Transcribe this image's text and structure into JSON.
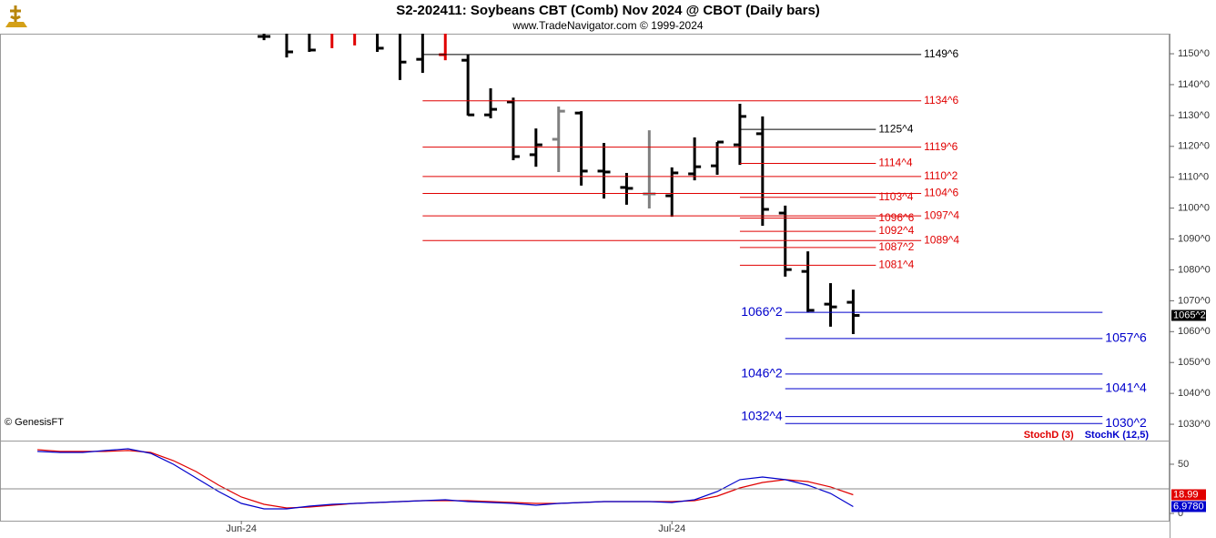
{
  "header": {
    "title": "S2-202411:  Soybeans CBT (Comb) Nov 2024 @ CBOT  (Daily bars)",
    "subtitle": "www.TradeNavigator.com © 1999-2024"
  },
  "watermark": "© GenesisFT",
  "chart_data": [
    {
      "type": "ohlc",
      "xlim": [
        -11.65,
        39.96
      ],
      "xticks": [
        {
          "value": -1,
          "label": "Jun-24"
        },
        {
          "value": 18,
          "label": "Jul-24"
        }
      ],
      "ylim": [
        1025,
        1156.5
      ],
      "yticks": [
        {
          "value": 1150,
          "label": "1150^0"
        },
        {
          "value": 1140,
          "label": "1140^0"
        },
        {
          "value": 1130,
          "label": "1130^0"
        },
        {
          "value": 1120,
          "label": "1120^0"
        },
        {
          "value": 1110,
          "label": "1110^0"
        },
        {
          "value": 1100,
          "label": "1100^0"
        },
        {
          "value": 1090,
          "label": "1090^0"
        },
        {
          "value": 1080,
          "label": "1080^0"
        },
        {
          "value": 1070,
          "label": "1070^0"
        },
        {
          "value": 1060,
          "label": "1060^0"
        },
        {
          "value": 1050,
          "label": "1050^0"
        },
        {
          "value": 1040,
          "label": "1040^0"
        },
        {
          "value": 1030,
          "label": "1030^0"
        }
      ],
      "bars": {
        "open": [
          1155.6,
          null,
          null,
          null,
          null,
          null,
          null,
          1148.2,
          1149.7,
          1147.9,
          1130.2,
          1134.4,
          1117.3,
          1122.3,
          1130.8,
          1112.0,
          1106.7,
          1104.6,
          1104.0,
          1111.1,
          1113.7,
          1120.5,
          1124.1,
          1098.4,
          1079.5,
          1068.9,
          1069.5
        ],
        "high": [
          1156.5,
          1156.5,
          1156.5,
          1156.5,
          1156.5,
          1156.5,
          1156.5,
          1156.5,
          1156.5,
          1149.7,
          1138.8,
          1135.8,
          1125.8,
          1132.9,
          1131.4,
          1121.1,
          1111.4,
          1125.2,
          1113.2,
          1122.9,
          1121.4,
          1133.8,
          1129.7,
          1100.8,
          1086.0,
          1075.7,
          1073.6
        ],
        "low": [
          1154.4,
          1148.8,
          1150.6,
          1151.8,
          1152.7,
          1150.6,
          1141.5,
          1143.8,
          1147.9,
          1130.0,
          1129.1,
          1115.5,
          1113.4,
          1111.7,
          1107.3,
          1103.1,
          1101.1,
          1099.9,
          1097.2,
          1109.0,
          1110.8,
          1114.0,
          1094.3,
          1077.8,
          1066.3,
          1061.6,
          1059.2
        ],
        "close": [
          1155.6,
          1150.6,
          1151.2,
          null,
          null,
          1151.8,
          1147.3,
          null,
          null,
          1130.2,
          1132.0,
          1116.7,
          1120.5,
          1131.4,
          1112.0,
          1111.7,
          1106.4,
          1104.6,
          1111.4,
          1113.4,
          1121.4,
          1129.7,
          1099.6,
          1080.1,
          1066.9,
          1068.0,
          1065.25
        ],
        "colors": [
          "#000000",
          "#000000",
          "#000000",
          "#e00000",
          "#e00000",
          "#000000",
          "#000000",
          "#000000",
          "#e00000",
          "#000000",
          "#000000",
          "#000000",
          "#000000",
          "#808080",
          "#000000",
          "#000000",
          "#000000",
          "#808080",
          "#000000",
          "#000000",
          "#000000",
          "#000000",
          "#000000",
          "#000000",
          "#000000",
          "#000000",
          "#000000"
        ]
      },
      "last_label": "1065^2",
      "levels": [
        {
          "value": 1149.75,
          "label": "1149^6",
          "color": "#000000",
          "from": 7,
          "to": 29,
          "label_side": "right"
        },
        {
          "value": 1134.75,
          "label": "1134^6",
          "color": "#e00000",
          "from": 7,
          "to": 29,
          "label_side": "right"
        },
        {
          "value": 1125.5,
          "label": "1125^4",
          "color": "#000000",
          "from": 21,
          "to": 27,
          "label_side": "right"
        },
        {
          "value": 1119.75,
          "label": "1119^6",
          "color": "#e00000",
          "from": 7,
          "to": 29,
          "label_side": "right"
        },
        {
          "value": 1114.5,
          "label": "1114^4",
          "color": "#e00000",
          "from": 21,
          "to": 27,
          "label_side": "right"
        },
        {
          "value": 1110.25,
          "label": "1110^2",
          "color": "#e00000",
          "from": 7,
          "to": 29,
          "label_side": "right"
        },
        {
          "value": 1104.75,
          "label": "1104^6",
          "color": "#e00000",
          "from": 7,
          "to": 29,
          "label_side": "right"
        },
        {
          "value": 1103.5,
          "label": "1103^4",
          "color": "#e00000",
          "from": 21,
          "to": 27,
          "label_side": "right"
        },
        {
          "value": 1097.5,
          "label": "1097^4",
          "color": "#e00000",
          "from": 7,
          "to": 29,
          "label_side": "right"
        },
        {
          "value": 1096.75,
          "label": "1096^6",
          "color": "#e00000",
          "from": 21,
          "to": 27,
          "label_side": "right"
        },
        {
          "value": 1092.5,
          "label": "1092^4",
          "color": "#e00000",
          "from": 21,
          "to": 27,
          "label_side": "right"
        },
        {
          "value": 1089.5,
          "label": "1089^4",
          "color": "#e00000",
          "from": 7,
          "to": 29,
          "label_side": "right"
        },
        {
          "value": 1087.25,
          "label": "1087^2",
          "color": "#e00000",
          "from": 21,
          "to": 27,
          "label_side": "right"
        },
        {
          "value": 1081.5,
          "label": "1081^4",
          "color": "#e00000",
          "from": 21,
          "to": 27,
          "label_side": "right"
        },
        {
          "value": 1066.25,
          "label": "1066^2",
          "color": "#0000cc",
          "from": 23,
          "to": 37,
          "label_side": "left"
        },
        {
          "value": 1057.75,
          "label": "1057^6",
          "color": "#0000cc",
          "from": 23,
          "to": 37,
          "label_side": "right"
        },
        {
          "value": 1046.25,
          "label": "1046^2",
          "color": "#0000cc",
          "from": 23,
          "to": 37,
          "label_side": "left"
        },
        {
          "value": 1041.5,
          "label": "1041^4",
          "color": "#0000cc",
          "from": 23,
          "to": 37,
          "label_side": "right"
        },
        {
          "value": 1032.5,
          "label": "1032^4",
          "color": "#0000cc",
          "from": 23,
          "to": 37,
          "label_side": "left"
        },
        {
          "value": 1030.25,
          "label": "1030^2",
          "color": "#0000cc",
          "from": 23,
          "to": 37,
          "label_side": "right"
        }
      ]
    },
    {
      "type": "line",
      "xlim": [
        -11.65,
        39.96
      ],
      "ylim": [
        -7.4,
        73.1
      ],
      "yticks": [
        50,
        0
      ],
      "reference_line": 25,
      "x": [
        -10,
        -9,
        -8,
        -7,
        -6,
        -5,
        -4,
        -3,
        -2,
        -1,
        0,
        1,
        2,
        3,
        4,
        5,
        6,
        7,
        8,
        9,
        10,
        11,
        12,
        13,
        14,
        15,
        16,
        17,
        18,
        19,
        20,
        21,
        22,
        23,
        24,
        25,
        26
      ],
      "series": [
        {
          "name": "StochD (3)",
          "color": "#e00000",
          "last_label": "18.99",
          "values": [
            64.8,
            63.0,
            63.0,
            63.0,
            63.9,
            62.0,
            53.7,
            42.6,
            28.7,
            16.7,
            9.3,
            5.6,
            6.5,
            8.3,
            10.2,
            11.1,
            12.0,
            13.0,
            13.0,
            13.0,
            12.0,
            11.1,
            10.2,
            10.2,
            11.1,
            12.0,
            12.0,
            12.0,
            12.0,
            13.0,
            17.6,
            25.9,
            31.5,
            34.3,
            32.4,
            26.9,
            18.99
          ]
        },
        {
          "name": "StochK (12,5)",
          "color": "#0000cc",
          "last_label": "6.9780",
          "values": [
            63.0,
            62.0,
            62.0,
            63.9,
            65.7,
            61.1,
            50.0,
            36.1,
            22.2,
            10.2,
            4.6,
            4.6,
            7.4,
            9.3,
            10.2,
            11.1,
            12.0,
            13.0,
            13.9,
            12.0,
            11.1,
            10.2,
            8.3,
            10.2,
            11.1,
            12.0,
            12.0,
            12.0,
            11.1,
            13.9,
            22.2,
            34.3,
            37.0,
            34.3,
            28.7,
            20.4,
            6.978
          ]
        }
      ]
    }
  ]
}
